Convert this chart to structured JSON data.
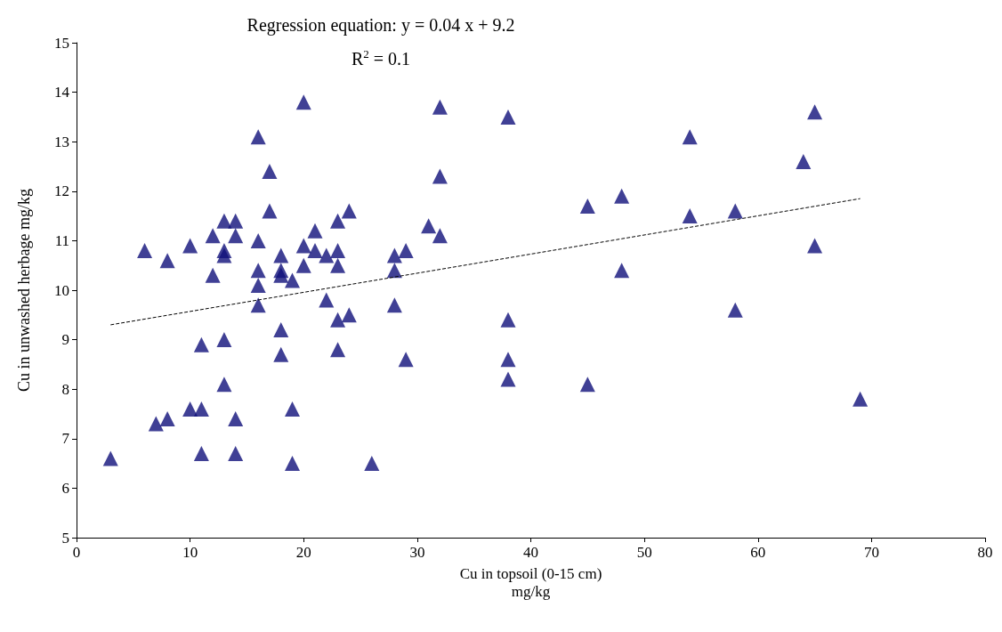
{
  "chart_data": {
    "type": "scatter",
    "xlabel": "Cu in topsoil (0-15 cm)\nmg/kg",
    "ylabel": "Cu in unwashed herbage mg/kg",
    "annotations": [
      "Regression equation: y = 0.04 x + 9.2",
      "R$^{2}$ = 0.1"
    ],
    "xlim": [
      0,
      80
    ],
    "xticks": [
      0,
      10,
      20,
      30,
      40,
      50,
      60,
      70,
      80
    ],
    "ylim": [
      5,
      15
    ],
    "yticks": [
      5,
      6,
      7,
      8,
      9,
      10,
      11,
      12,
      13,
      14,
      15
    ],
    "grid": false,
    "series": [
      {
        "color": "#10107a",
        "marker": "triangle",
        "x": [
          3,
          6,
          7,
          8,
          8,
          10,
          10,
          11,
          11,
          11,
          12,
          12,
          13,
          13,
          13,
          13,
          13,
          14,
          14,
          14,
          14,
          16,
          16,
          16,
          16,
          16,
          17,
          17,
          18,
          18,
          18,
          18,
          18,
          19,
          19,
          19,
          20,
          20,
          20,
          21,
          21,
          22,
          22,
          23,
          23,
          23,
          23,
          23,
          24,
          24,
          26,
          28,
          28,
          28,
          29,
          29,
          31,
          32,
          32,
          32,
          38,
          38,
          38,
          38,
          45,
          45,
          48,
          48,
          54,
          54,
          58,
          58,
          64,
          65,
          65,
          69
        ],
        "values": [
          6.6,
          10.8,
          7.3,
          7.4,
          10.6,
          10.9,
          7.6,
          7.6,
          8.9,
          6.7,
          11.1,
          10.3,
          11.4,
          10.8,
          10.7,
          9.0,
          8.1,
          11.4,
          11.1,
          7.4,
          6.7,
          13.1,
          11.0,
          10.4,
          10.1,
          9.7,
          12.4,
          11.6,
          10.7,
          10.4,
          10.3,
          9.2,
          8.7,
          10.2,
          7.6,
          6.5,
          13.8,
          10.9,
          10.5,
          11.2,
          10.8,
          10.7,
          9.8,
          11.4,
          10.8,
          10.5,
          9.4,
          8.8,
          11.6,
          9.5,
          6.5,
          10.7,
          10.4,
          9.7,
          10.8,
          8.6,
          11.3,
          13.7,
          12.3,
          11.1,
          13.5,
          9.4,
          8.6,
          8.2,
          11.7,
          8.1,
          11.9,
          10.4,
          13.1,
          11.5,
          11.6,
          9.6,
          12.6,
          13.6,
          10.9,
          7.8
        ]
      },
      {
        "type": "line",
        "color": "#000000",
        "line_style": "dashed",
        "marker": "none",
        "x": [
          3,
          69
        ],
        "values": [
          9.3,
          11.85
        ]
      }
    ]
  }
}
